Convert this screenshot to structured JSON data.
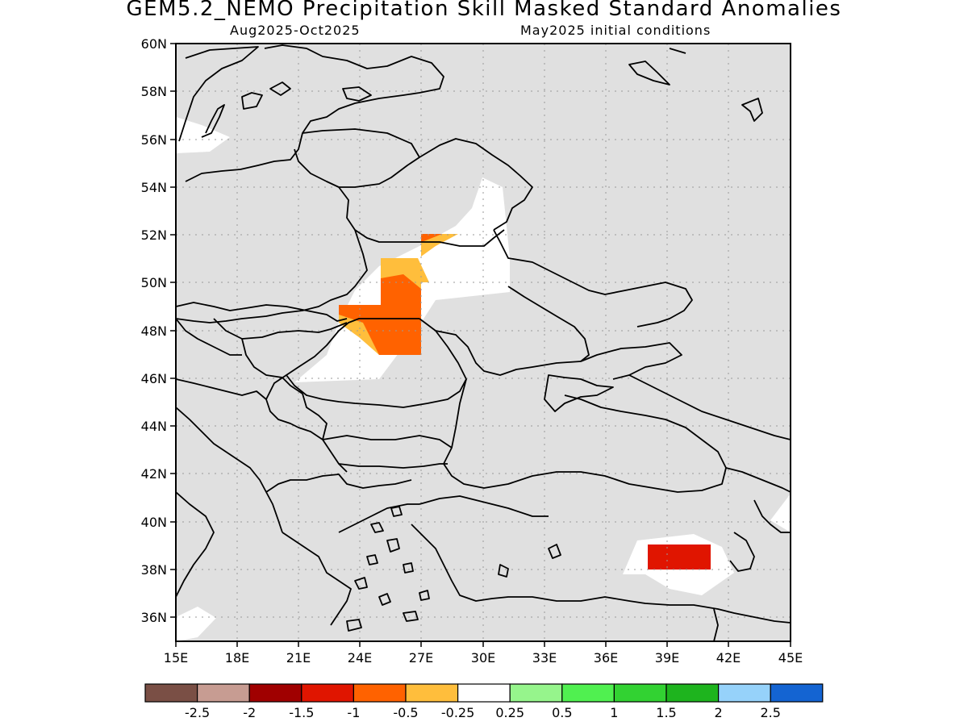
{
  "title": "GEM5.2_NEMO Precipitation Skill Masked Standard Anomalies",
  "subtitle_left": "Aug2025-Oct2025",
  "subtitle_right": "May2025 initial conditions",
  "map": {
    "lon_range": [
      15,
      45
    ],
    "lat_range": [
      35,
      60
    ],
    "lon_labels": [
      "15E",
      "18E",
      "21E",
      "24E",
      "27E",
      "30E",
      "33E",
      "36E",
      "39E",
      "42E",
      "45E"
    ],
    "lat_labels": [
      "36N",
      "38N",
      "40N",
      "42N",
      "44N",
      "46N",
      "48N",
      "50N",
      "52N",
      "54N",
      "56N",
      "58N",
      "60N"
    ],
    "masked_color": "#e0e0e0",
    "grid": "dotted"
  },
  "colorbar": {
    "colors": [
      "#7a4f45",
      "#c79c92",
      "#a00000",
      "#e01500",
      "#ff6200",
      "#ffbe3c",
      "#ffffff",
      "#96f58c",
      "#50f050",
      "#32d232",
      "#1eb41e",
      "#96d2fa",
      "#1464d2"
    ],
    "labels": [
      "-2.5",
      "-2",
      "-1.5",
      "-1",
      "-0.5",
      "-0.25",
      "0.25",
      "0.5",
      "1",
      "1.5",
      "2",
      "2.5"
    ]
  }
}
